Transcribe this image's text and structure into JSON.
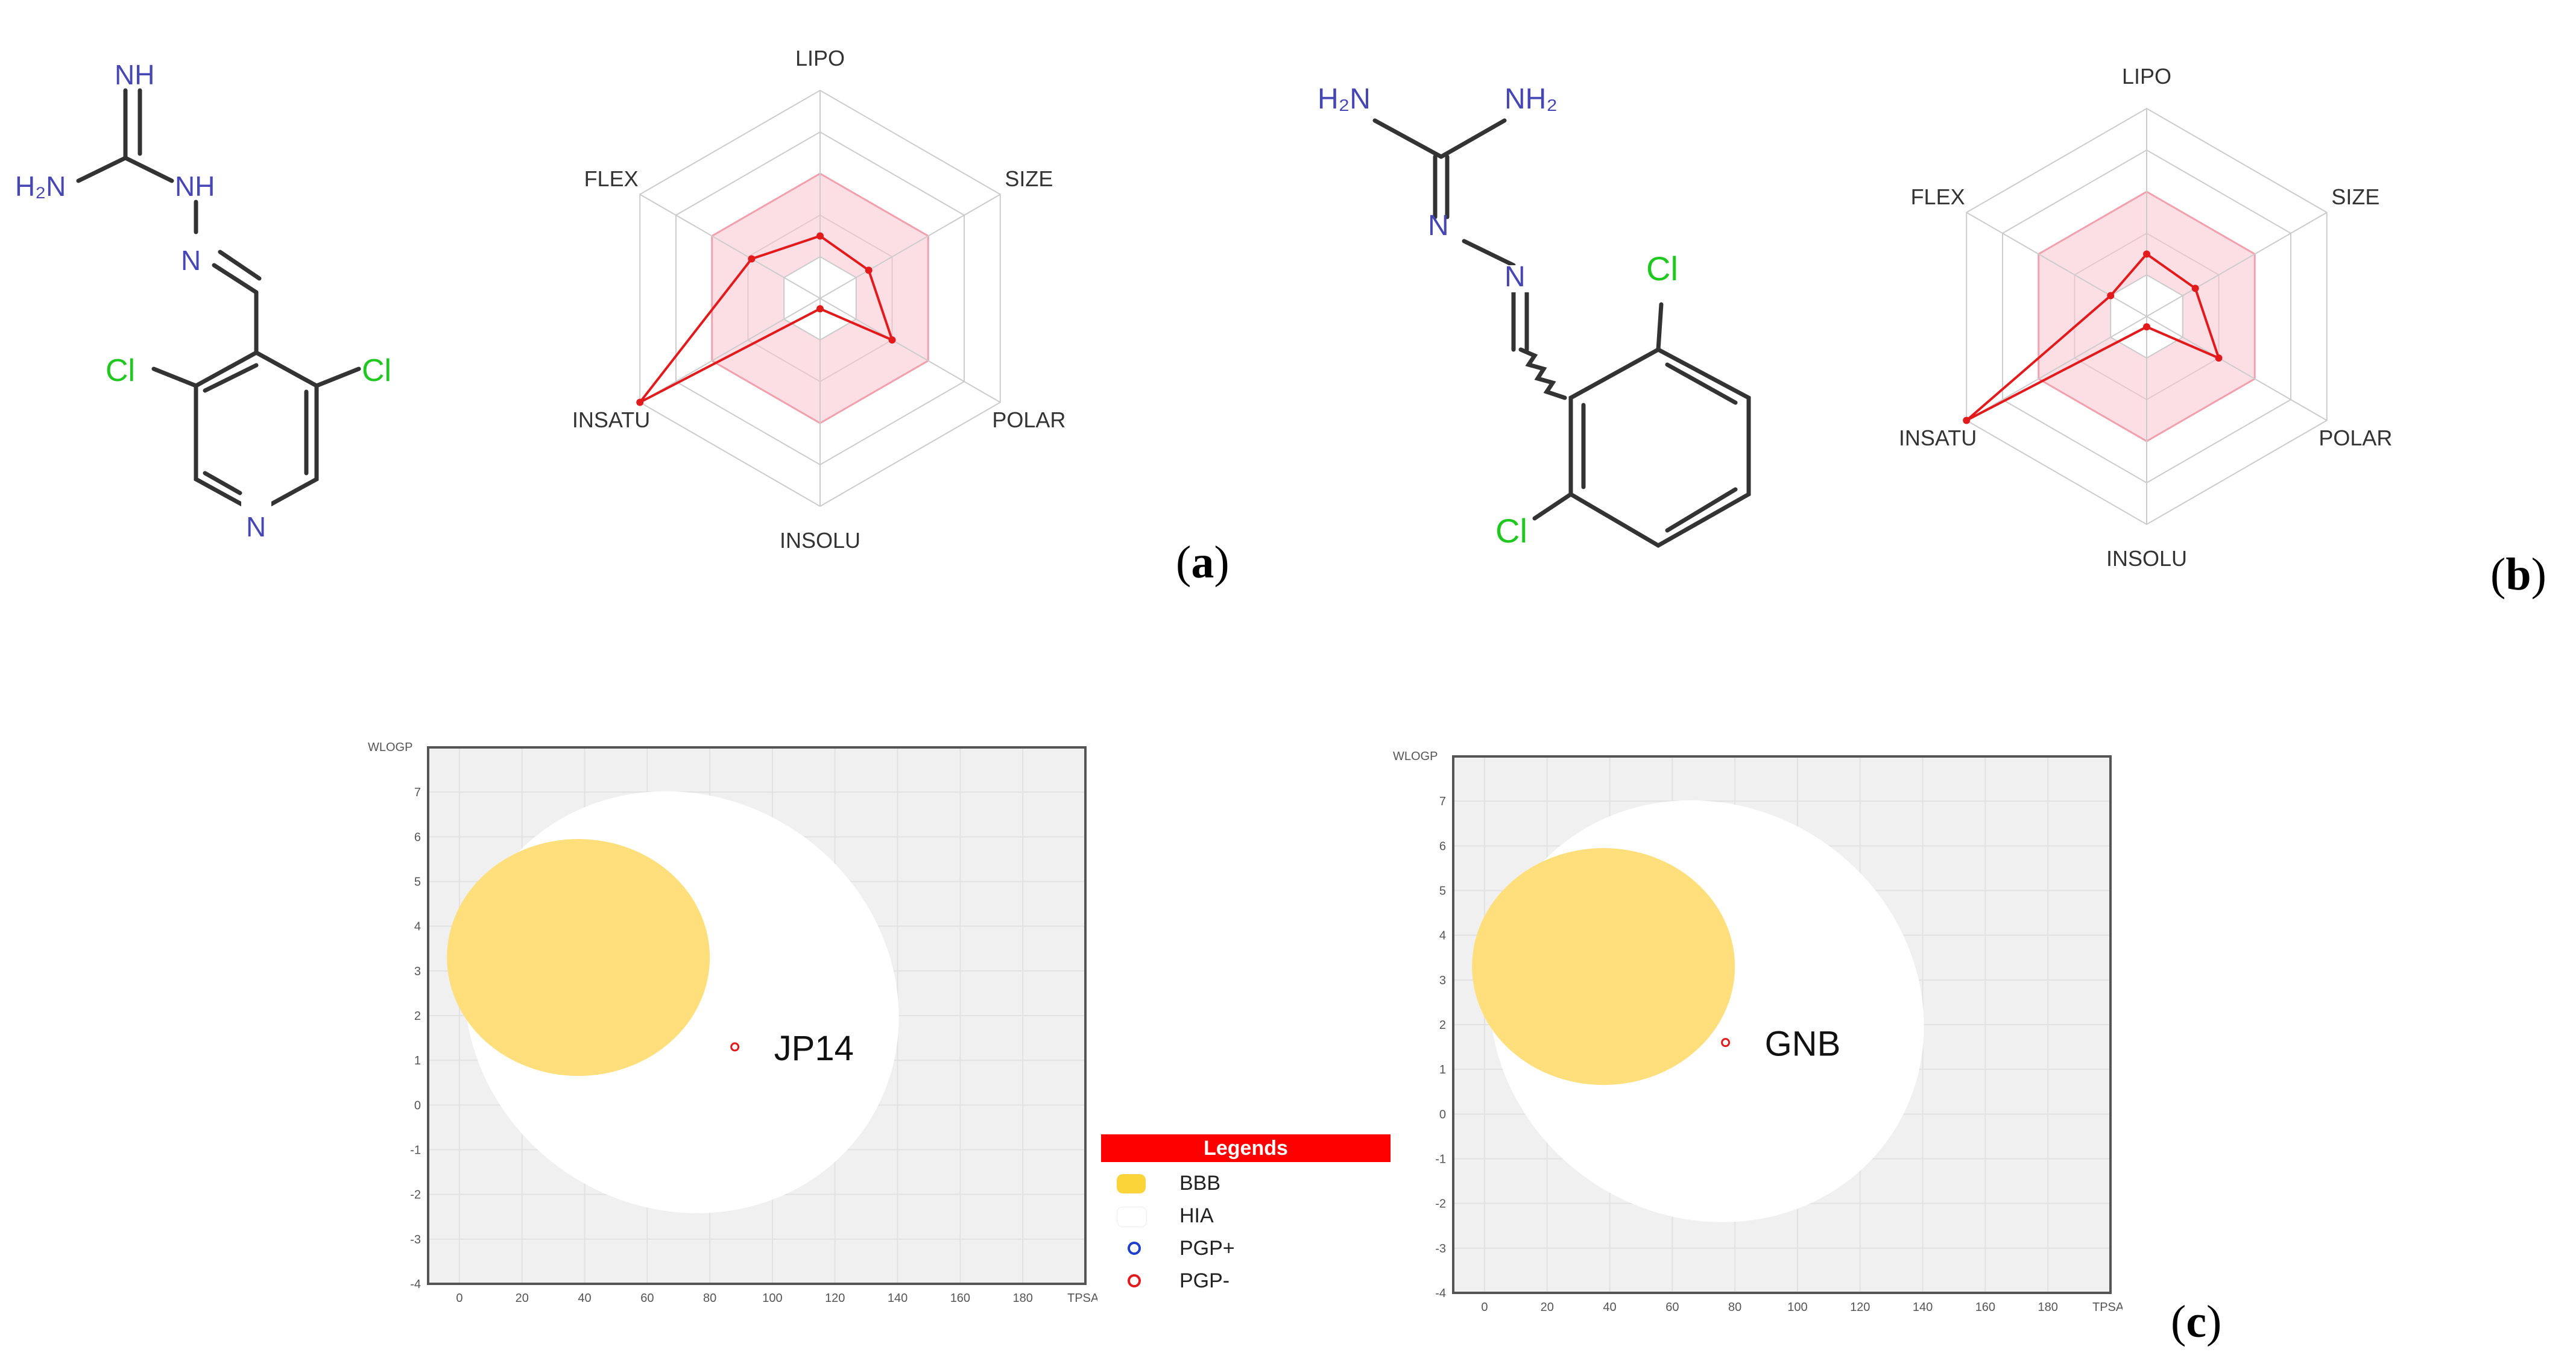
{
  "molecule_a": {
    "atoms": {
      "nh": "NH",
      "h2n": "H₂N",
      "hn": "NH",
      "n": "N",
      "cl_left": "Cl",
      "cl_right": "Cl",
      "pyridine_n": "N"
    }
  },
  "molecule_b": {
    "atoms": {
      "h2n": "H₂N",
      "nh2": "NH₂",
      "n1": "N",
      "n2": "N",
      "cl_top": "Cl",
      "cl_bottom": "Cl"
    }
  },
  "panel_labels": {
    "a": "a",
    "b": "b",
    "c": "c"
  },
  "colors": {
    "radar_line": "#e31a1c",
    "radar_zone": "#f9c5cf",
    "bbb_yolk": "#fedf7c",
    "hia_white": "#ffffff",
    "plot_bg": "#f0f0f0",
    "legend_header": "#ff0000",
    "pgp_plus": "#1f3fcf",
    "pgp_minus": "#e31a1c",
    "atom_n": "#4646b4",
    "atom_cl": "#1ec81e"
  },
  "chart_data": [
    {
      "type": "radar",
      "panel": "a",
      "axes": [
        "LIPO",
        "SIZE",
        "POLAR",
        "INSOLU",
        "INSATU",
        "FLEX"
      ],
      "range": [
        0,
        1
      ],
      "optimal_zone": [
        0.6,
        0.6,
        0.6,
        0.6,
        0.6,
        0.6
      ],
      "values": [
        0.3,
        0.27,
        0.4,
        0.05,
        1.0,
        0.38
      ]
    },
    {
      "type": "radar",
      "panel": "b",
      "axes": [
        "LIPO",
        "SIZE",
        "POLAR",
        "INSOLU",
        "INSATU",
        "FLEX"
      ],
      "range": [
        0,
        1
      ],
      "optimal_zone": [
        0.6,
        0.6,
        0.6,
        0.6,
        0.6,
        0.6
      ],
      "values": [
        0.3,
        0.27,
        0.4,
        0.05,
        1.0,
        0.2
      ]
    },
    {
      "type": "scatter",
      "panel": "c-left",
      "xlabel": "TPSA",
      "ylabel": "WLOGP",
      "xlim": [
        -10,
        200
      ],
      "ylim": [
        -4,
        8
      ],
      "xticks": [
        0,
        20,
        40,
        60,
        80,
        100,
        120,
        140,
        160,
        180
      ],
      "yticks": [
        -4,
        -3,
        -2,
        -1,
        0,
        1,
        2,
        3,
        4,
        5,
        6,
        7
      ],
      "points": [
        {
          "label": "JP14",
          "x": 88,
          "y": 1.3,
          "class": "PGP-"
        }
      ]
    },
    {
      "type": "scatter",
      "panel": "c-right",
      "xlabel": "TPSA",
      "ylabel": "WLOGP",
      "xlim": [
        -10,
        200
      ],
      "ylim": [
        -4,
        8
      ],
      "xticks": [
        0,
        20,
        40,
        60,
        80,
        100,
        120,
        140,
        160,
        180
      ],
      "yticks": [
        -4,
        -3,
        -2,
        -1,
        0,
        1,
        2,
        3,
        4,
        5,
        6,
        7
      ],
      "points": [
        {
          "label": "GNB",
          "x": 77,
          "y": 1.6,
          "class": "PGP-"
        }
      ]
    }
  ],
  "legend": {
    "title": "Legends",
    "items": [
      {
        "label": "BBB",
        "kind": "swatch",
        "color": "#fbd439"
      },
      {
        "label": "HIA",
        "kind": "swatch",
        "color": "#ffffff"
      },
      {
        "label": "PGP+",
        "kind": "circle",
        "color": "#1f3fcf"
      },
      {
        "label": "PGP-",
        "kind": "circle",
        "color": "#e31a1c"
      }
    ]
  }
}
